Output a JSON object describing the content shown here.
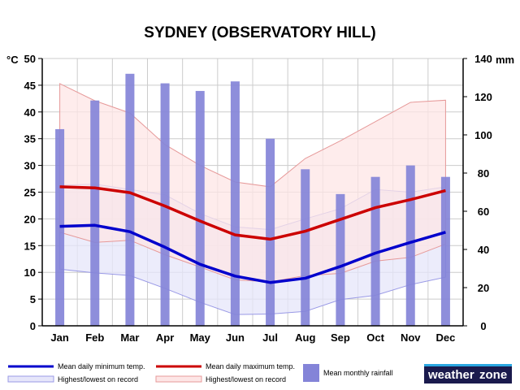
{
  "chart_data": {
    "type": "bar",
    "title": "SYDNEY (OBSERVATORY HILL)",
    "left_axis_unit": "°C",
    "right_axis_unit": "mm",
    "ylim_left": [
      0,
      50
    ],
    "ylim_right": [
      0,
      140
    ],
    "y_ticks_left": [
      0,
      5,
      10,
      15,
      20,
      25,
      30,
      35,
      40,
      45,
      50
    ],
    "y_ticks_right": [
      0,
      20,
      40,
      60,
      80,
      100,
      120,
      140
    ],
    "categories": [
      "Jan",
      "Feb",
      "Mar",
      "Apr",
      "May",
      "Jun",
      "Jul",
      "Aug",
      "Sep",
      "Oct",
      "Nov",
      "Dec"
    ],
    "grid": true,
    "series": [
      {
        "name": "Mean monthly rainfall",
        "kind": "bar",
        "axis": "right",
        "color": "#8484d8",
        "values": [
          103,
          118,
          132,
          127,
          123,
          128,
          98,
          82,
          69,
          78,
          84,
          78
        ]
      },
      {
        "name": "Mean daily minimum temp.",
        "kind": "line",
        "axis": "left",
        "color": "#0000cc",
        "values": [
          18.6,
          18.8,
          17.6,
          14.7,
          11.5,
          9.3,
          8.1,
          8.9,
          11.1,
          13.6,
          15.6,
          17.5
        ]
      },
      {
        "name": "Mean daily maximum temp.",
        "kind": "line",
        "axis": "left",
        "color": "#cc0000",
        "values": [
          26.0,
          25.8,
          24.9,
          22.4,
          19.6,
          17.0,
          16.2,
          17.7,
          19.9,
          22.1,
          23.6,
          25.3
        ]
      },
      {
        "name": "Highest/lowest on record",
        "kind": "band",
        "axis": "left",
        "fill": "#e6e6fa",
        "stroke": "#9999e6",
        "applies_to": "Mean daily minimum temp.",
        "high": [
          26.3,
          26.5,
          25.5,
          24.5,
          21.0,
          18.5,
          18.0,
          20.0,
          21.9,
          25.5,
          25.0,
          26.0
        ],
        "low": [
          10.6,
          9.9,
          9.4,
          7.0,
          4.4,
          2.1,
          2.2,
          2.7,
          4.9,
          5.7,
          7.7,
          9.1
        ]
      },
      {
        "name": "Highest/lowest on record",
        "kind": "band",
        "axis": "left",
        "fill": "#fde6e6",
        "stroke": "#e69999",
        "applies_to": "Mean daily maximum temp.",
        "high": [
          45.3,
          42.1,
          39.8,
          33.9,
          30.0,
          26.9,
          26.0,
          31.3,
          34.6,
          38.2,
          41.8,
          42.2
        ],
        "low": [
          17.5,
          15.6,
          16.0,
          13.3,
          11.0,
          8.6,
          8.2,
          9.4,
          9.8,
          12.1,
          12.8,
          15.3
        ]
      }
    ],
    "legend": {
      "placement": "bottom",
      "items": [
        {
          "label": "Mean daily minimum temp.",
          "swatch": "line",
          "color": "#0000cc"
        },
        {
          "label": "Mean daily maximum temp.",
          "swatch": "line",
          "color": "#cc0000"
        },
        {
          "label": "Mean monthly rainfall",
          "swatch": "bar",
          "color": "#8484d8"
        },
        {
          "label": "Highest/lowest on record",
          "swatch": "band",
          "color": "#e6e6fa",
          "border": "#9999e6"
        },
        {
          "label": "Highest/lowest on record",
          "swatch": "band",
          "color": "#fde6e6",
          "border": "#e69999"
        }
      ]
    }
  },
  "logo": {
    "text_left": "weather",
    "text_right": "zone",
    "background": "#1a1a4d",
    "accent": "#2aa6e0"
  }
}
